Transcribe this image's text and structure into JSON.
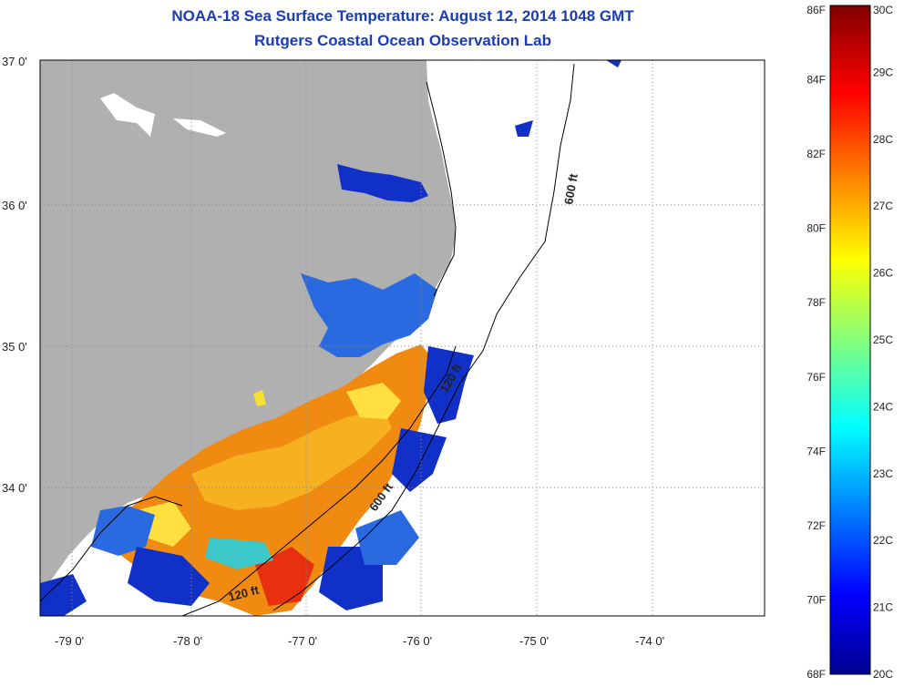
{
  "header": {
    "title": "NOAA-18 Sea Surface Temperature:  August 12, 2014 1048 GMT",
    "subtitle": "Rutgers Coastal Ocean Observation Lab"
  },
  "map": {
    "lat_labels": [
      "37 0'",
      "36 0'",
      "35 0'",
      "34 0'"
    ],
    "lon_labels": [
      "-79 0'",
      "-78 0'",
      "-77 0'",
      "-76 0'",
      "-75 0'",
      "-74 0'"
    ],
    "isobath_labels": [
      "600 ft",
      "120 ft",
      "600 ft",
      "120 ft"
    ],
    "land_color": "#b0b0b0",
    "ocean_color": "#ffffff"
  },
  "colorbar": {
    "fahrenheit_labels": [
      "86F",
      "84F",
      "82F",
      "80F",
      "78F",
      "76F",
      "74F",
      "72F",
      "70F",
      "68F"
    ],
    "celsius_labels": [
      "30C",
      "29C",
      "28C",
      "27C",
      "26C",
      "25C",
      "24C",
      "23C",
      "22C",
      "21C",
      "20C"
    ],
    "range_celsius": [
      20,
      30
    ],
    "colormap": "jet"
  }
}
